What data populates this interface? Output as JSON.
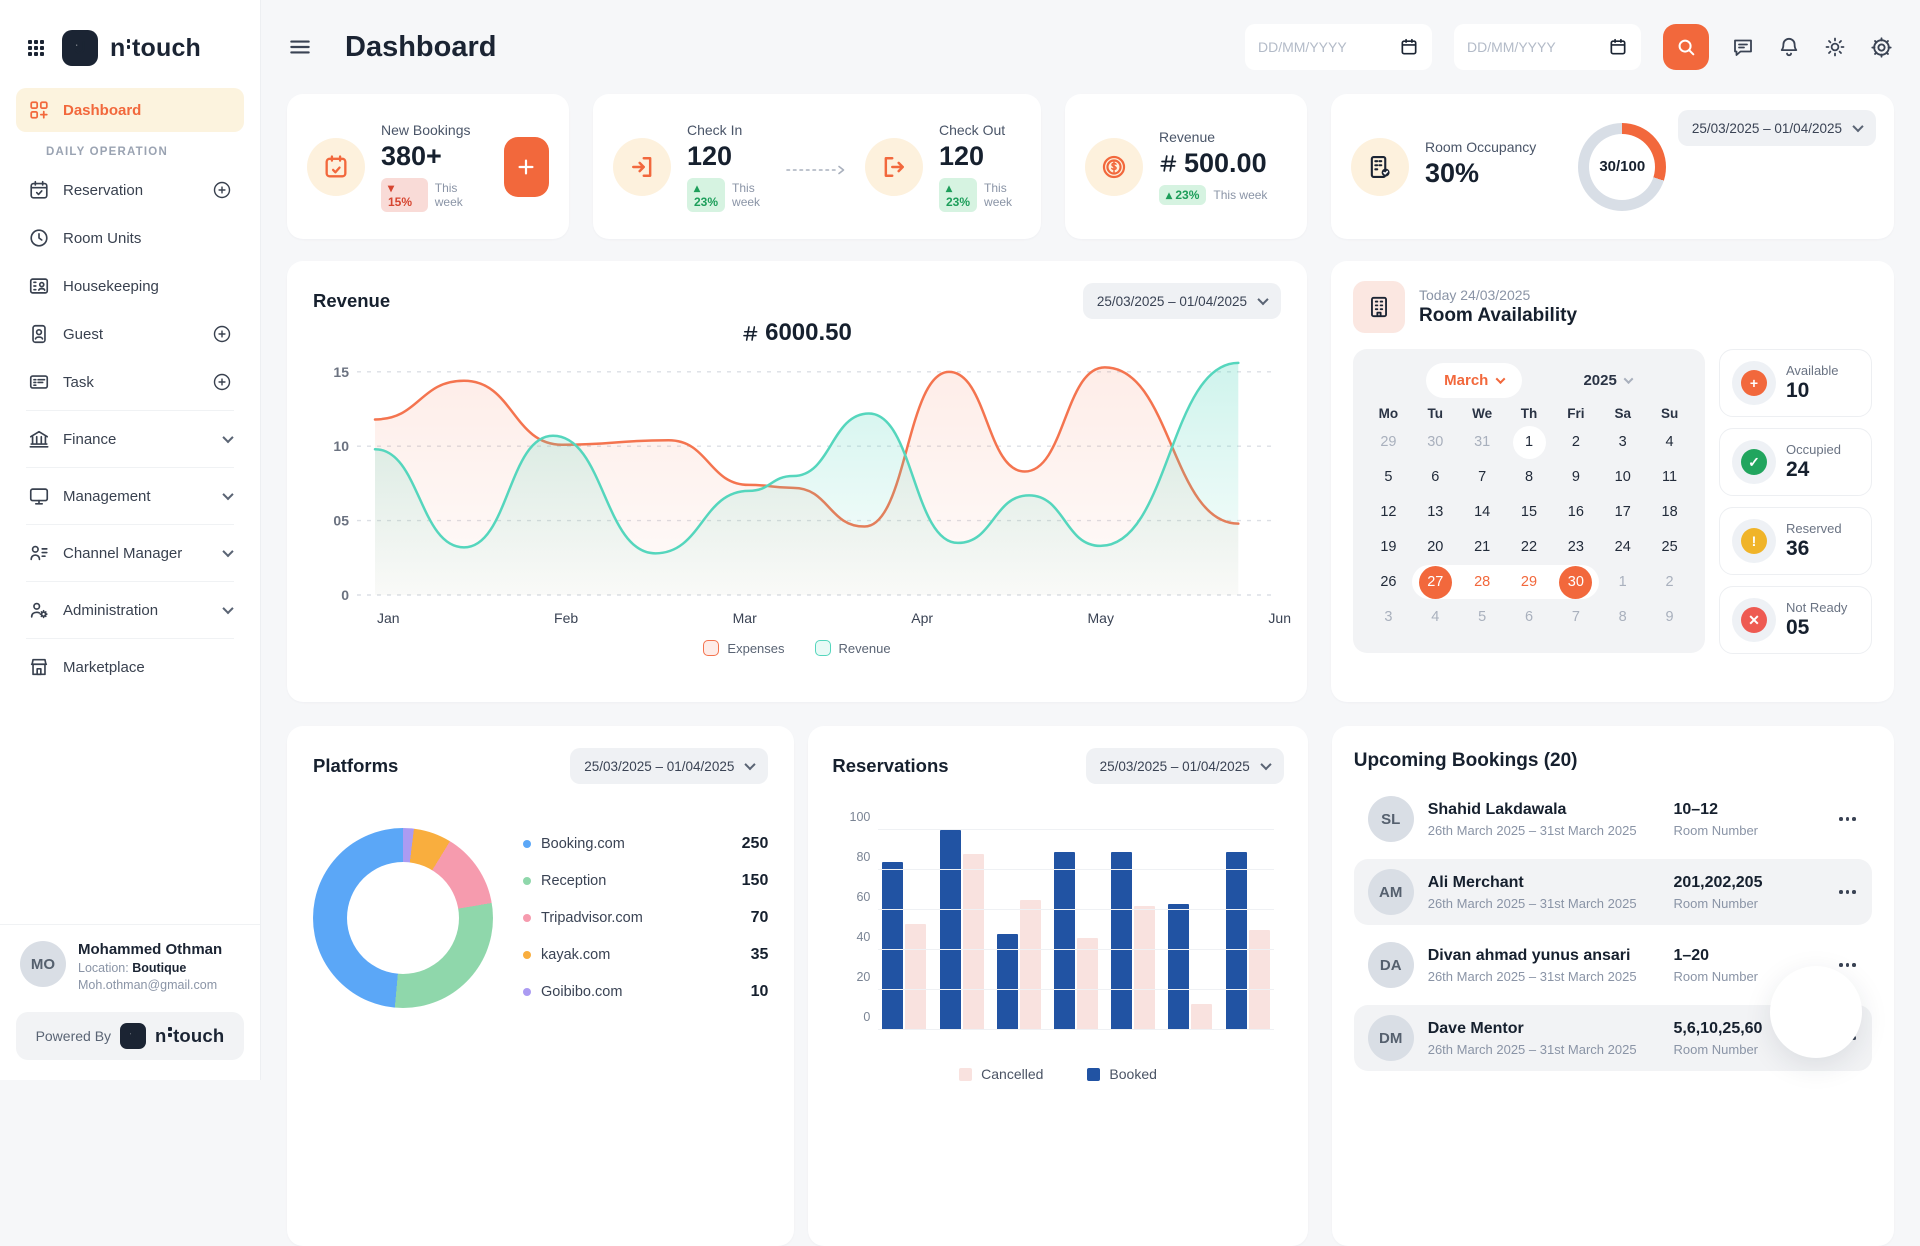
{
  "brand": {
    "name_part1": "n",
    "name_part2": "touch",
    "powered_by_label": "Powered By"
  },
  "header": {
    "title": "Dashboard",
    "date_from_placeholder": "DD/MM/YYYY",
    "date_to_placeholder": "DD/MM/YYYY"
  },
  "sidebar": {
    "dashboard_label": "Dashboard",
    "section_label": "DAILY OPERATION",
    "items": [
      {
        "label": "Reservation"
      },
      {
        "label": "Room Units"
      },
      {
        "label": "Housekeeping"
      },
      {
        "label": "Guest"
      },
      {
        "label": "Task"
      },
      {
        "label": "Finance"
      },
      {
        "label": "Management"
      },
      {
        "label": "Channel Manager"
      },
      {
        "label": "Administration"
      },
      {
        "label": "Marketplace"
      }
    ]
  },
  "user": {
    "name": "Mohammed Othman",
    "location_label": "Location: ",
    "location": "Boutique",
    "email": "Moh.othman@gmail.com",
    "initials": "MO"
  },
  "stats": {
    "new_bookings": {
      "label": "New Bookings",
      "value": "380+",
      "delta_arrow": "▾",
      "delta": "15%",
      "period": "This week"
    },
    "check_in": {
      "label": "Check In",
      "value": "120",
      "delta_arrow": "▴",
      "delta": "23%",
      "period": "This week"
    },
    "check_out": {
      "label": "Check Out",
      "value": "120",
      "delta_arrow": "▴",
      "delta": "23%",
      "period": "This week"
    },
    "revenue": {
      "label": "Revenue",
      "value": "500.00",
      "delta_arrow": "▴",
      "delta": "23%",
      "period": "This week"
    },
    "occupancy": {
      "label": "Room Occupancy",
      "value": "30%",
      "ring_label": "30/100",
      "percent": 30,
      "date_range": "25/03/2025 – 01/04/2025",
      "accent": "#F2683C",
      "track": "#D8DEE6"
    }
  },
  "chart_data": [
    {
      "id": "revenue",
      "type": "area",
      "title": "Revenue",
      "date_range": "25/03/2025 – 01/04/2025",
      "total_value": "6000.50",
      "x_labels": [
        "Jan",
        "Feb",
        "Mar",
        "Apr",
        "May",
        "Jun"
      ],
      "y_ticks": [
        "15",
        "10",
        "05",
        "0"
      ],
      "ylim": [
        0,
        16.4
      ],
      "grid": "dashed",
      "legend_position": "bottom",
      "series": [
        {
          "name": "Expenses",
          "color": "#F4744F",
          "points": [
            [
              0,
              11.8
            ],
            [
              0.1,
              14.4
            ],
            [
              0.21,
              10.1
            ],
            [
              0.33,
              10.4
            ],
            [
              0.42,
              7.4
            ],
            [
              0.47,
              7.2
            ],
            [
              0.55,
              4.6
            ],
            [
              0.645,
              15.0
            ],
            [
              0.73,
              8.3
            ],
            [
              0.82,
              15.3
            ],
            [
              0.97,
              4.8
            ]
          ]
        },
        {
          "name": "Revenue",
          "color": "#55D6BD",
          "points": [
            [
              0,
              9.8
            ],
            [
              0.1,
              3.2
            ],
            [
              0.2,
              10.7
            ],
            [
              0.315,
              2.8
            ],
            [
              0.42,
              7.0
            ],
            [
              0.47,
              8.0
            ],
            [
              0.555,
              12.2
            ],
            [
              0.655,
              3.5
            ],
            [
              0.735,
              6.7
            ],
            [
              0.815,
              3.3
            ],
            [
              0.97,
              15.6
            ]
          ]
        }
      ],
      "legend": [
        {
          "label": "Expenses",
          "color": "#F4744F"
        },
        {
          "label": "Revenue",
          "color": "#55D6BD"
        }
      ]
    },
    {
      "id": "platforms",
      "type": "pie",
      "title": "Platforms",
      "date_range": "25/03/2025 – 01/04/2025",
      "slices": [
        {
          "label": "Booking.com",
          "value": 250,
          "color": "#5BA7F7"
        },
        {
          "label": "Reception",
          "value": 150,
          "color": "#8FD7AB"
        },
        {
          "label": "Tripadvisor.com",
          "value": 70,
          "color": "#F69BAE"
        },
        {
          "label": "kayak.com",
          "value": 35,
          "color": "#F9AE3E"
        },
        {
          "label": "Goibibo.com",
          "value": 10,
          "color": "#AB9BF2"
        }
      ],
      "clockwise_from_top": [
        4,
        3,
        2,
        1,
        0
      ]
    },
    {
      "id": "reservations",
      "type": "bar",
      "title": "Reservations",
      "date_range": "25/03/2025 – 01/04/2025",
      "y_ticks": [
        100,
        80,
        60,
        40,
        20,
        0
      ],
      "ylim": [
        0,
        100
      ],
      "groups": 7,
      "series": [
        {
          "name": "Booked",
          "color": "#2153A3",
          "values": [
            84,
            100,
            48,
            89,
            89,
            63,
            89
          ]
        },
        {
          "name": "Cancelled",
          "color": "#F9E2DF",
          "values": [
            53,
            88,
            65,
            46,
            62,
            13,
            50
          ]
        }
      ],
      "legend": [
        {
          "label": "Cancelled",
          "color": "#F9E2DF"
        },
        {
          "label": "Booked",
          "color": "#2153A3"
        }
      ]
    }
  ],
  "availability": {
    "today_label": "Today 24/03/2025",
    "title": "Room Availability",
    "month": "March",
    "year": "2025",
    "day_headers": [
      "Mo",
      "Tu",
      "We",
      "Th",
      "Fri",
      "Sa",
      "Su"
    ],
    "weeks": [
      [
        {
          "d": "29",
          "cls": "dim"
        },
        {
          "d": "30",
          "cls": "dim"
        },
        {
          "d": "31",
          "cls": "dim"
        },
        {
          "d": "1",
          "cls": "today"
        },
        {
          "d": "2"
        },
        {
          "d": "3"
        },
        {
          "d": "4"
        }
      ],
      [
        {
          "d": "5"
        },
        {
          "d": "6"
        },
        {
          "d": "7"
        },
        {
          "d": "8"
        },
        {
          "d": "9"
        },
        {
          "d": "10"
        },
        {
          "d": "11"
        }
      ],
      [
        {
          "d": "12"
        },
        {
          "d": "13"
        },
        {
          "d": "14"
        },
        {
          "d": "15"
        },
        {
          "d": "16"
        },
        {
          "d": "17"
        },
        {
          "d": "18"
        }
      ],
      [
        {
          "d": "19"
        },
        {
          "d": "20"
        },
        {
          "d": "21"
        },
        {
          "d": "22"
        },
        {
          "d": "23"
        },
        {
          "d": "24"
        },
        {
          "d": "25"
        }
      ],
      [
        {
          "d": "26"
        },
        {
          "d": "27",
          "cls": "sel"
        },
        {
          "d": "28",
          "cls": "range"
        },
        {
          "d": "29",
          "cls": "range"
        },
        {
          "d": "30",
          "cls": "sel"
        },
        {
          "d": "1",
          "cls": "dim"
        },
        {
          "d": "2",
          "cls": "dim"
        }
      ],
      [
        {
          "d": "3",
          "cls": "dim"
        },
        {
          "d": "4",
          "cls": "dim"
        },
        {
          "d": "5",
          "cls": "dim"
        },
        {
          "d": "6",
          "cls": "dim"
        },
        {
          "d": "7",
          "cls": "dim"
        },
        {
          "d": "8",
          "cls": "dim"
        },
        {
          "d": "9",
          "cls": "dim"
        }
      ]
    ],
    "stats": [
      {
        "label": "Available",
        "value": "10",
        "color": "#F2683C",
        "glyph": "+"
      },
      {
        "label": "Occupied",
        "value": "24",
        "color": "#21A55E",
        "glyph": "✓"
      },
      {
        "label": "Reserved",
        "value": "36",
        "color": "#F0B429",
        "glyph": "!"
      },
      {
        "label": "Not Ready",
        "value": "05",
        "color": "#EE5A52",
        "glyph": "✕"
      }
    ]
  },
  "bookings": {
    "title": "Upcoming Bookings (20)",
    "room_number_label": "Room Number",
    "items": [
      {
        "name": "Shahid Lakdawala",
        "dates": "26th March 2025 – 31st March 2025",
        "rooms": "10–12",
        "initials": "SL",
        "highlight": false
      },
      {
        "name": "Ali Merchant",
        "dates": "26th March 2025 – 31st March 2025",
        "rooms": "201,202,205",
        "initials": "AM",
        "highlight": true
      },
      {
        "name": "Divan ahmad yunus ansari",
        "dates": "26th March 2025 – 31st March 2025",
        "rooms": "1–20",
        "initials": "DA",
        "highlight": false
      },
      {
        "name": "Dave Mentor",
        "dates": "26th March 2025 – 31st March 2025",
        "rooms": "5,6,10,25,60",
        "initials": "DM",
        "highlight": true
      }
    ]
  }
}
